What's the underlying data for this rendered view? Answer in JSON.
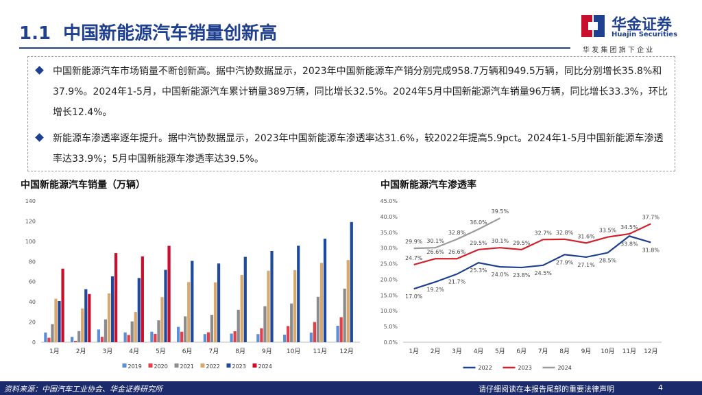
{
  "header": {
    "number": "1.1",
    "title": "中国新能源汽车销量创新高",
    "logo": "华金证券",
    "logo_en": "Huajin Securities",
    "slogan": "华 发 集 团 旗 下 企 业"
  },
  "bullets": [
    "中国新能源汽车市场销量不断创新高。据中汽协数据显示，2023年中国新能源车产销分别完成958.7万辆和949.5万辆，同比分别增长35.8%和37.9%。2024年1-5月，中国新能源汽车累计销量389万辆，同比增长32.5%。2024年5月中国新能源汽车销量96万辆，同比增长33.3%，环比增长12.4%。",
    "新能源车渗透率逐年提升。据中汽协数据显示，2023年中国新能源车渗透率达31.6%，较2022年提高5.9pct。2024年1-5月中国新能源车渗透率达33.9%；5月中国新能源车渗透率达39.5%。"
  ],
  "chart_data": [
    {
      "type": "bar",
      "title": "中国新能源汽车销量（万辆）",
      "categories": [
        "1月",
        "2月",
        "3月",
        "4月",
        "5月",
        "6月",
        "7月",
        "8月",
        "9月",
        "10月",
        "11月",
        "12月"
      ],
      "series": [
        {
          "name": "2019",
          "color": "#5b8fd6",
          "values": [
            9.6,
            5.3,
            12.6,
            9.7,
            10.4,
            15.2,
            8.0,
            8.5,
            8.0,
            7.5,
            9.5,
            16.3
          ]
        },
        {
          "name": "2020",
          "color": "#e0404a",
          "values": [
            4.4,
            1.3,
            5.3,
            7.2,
            8.2,
            10.4,
            9.8,
            10.9,
            13.8,
            16.0,
            20.0,
            24.8
          ]
        },
        {
          "name": "2021",
          "color": "#8c8c8c",
          "values": [
            17.9,
            11.0,
            22.6,
            20.6,
            21.7,
            25.6,
            27.1,
            32.1,
            35.7,
            38.3,
            45.0,
            53.1
          ]
        },
        {
          "name": "2022",
          "color": "#d9a86c",
          "values": [
            43.1,
            33.4,
            48.4,
            29.9,
            44.7,
            59.6,
            59.3,
            66.6,
            70.8,
            71.4,
            78.6,
            81.4
          ]
        },
        {
          "name": "2023",
          "color": "#1f4a9c",
          "values": [
            40.8,
            52.5,
            65.3,
            63.6,
            71.7,
            80.6,
            78.0,
            84.6,
            90.4,
            95.6,
            102.6,
            119.1
          ]
        },
        {
          "name": "2024",
          "color": "#c8102e",
          "values": [
            72.9,
            47.7,
            88.3,
            85.0,
            95.5,
            null,
            null,
            null,
            null,
            null,
            null,
            null
          ]
        }
      ],
      "ylim": [
        0,
        140
      ],
      "yticks": [
        0,
        20,
        40,
        60,
        80,
        100,
        120,
        140
      ],
      "grid": false,
      "legend": "bottom"
    },
    {
      "type": "line",
      "title": "中国新能源汽车渗透率",
      "categories": [
        "1月",
        "2月",
        "3月",
        "4月",
        "5月",
        "6月",
        "7月",
        "8月",
        "9月",
        "10月",
        "11月",
        "12月"
      ],
      "series": [
        {
          "name": "2022",
          "color": "#1f3f8f",
          "values": [
            17.0,
            19.2,
            21.7,
            25.3,
            24.0,
            23.8,
            24.5,
            27.9,
            27.1,
            28.5,
            33.8,
            31.8
          ],
          "value_labels": [
            "17.0%",
            "19.2%",
            "21.7%",
            "25.3%",
            "24.0%",
            "23.8%",
            "24.5%",
            "27.9%",
            "27.1%",
            "28.5%",
            "33.8%",
            "31.8%"
          ]
        },
        {
          "name": "2023",
          "color": "#d0202a",
          "values": [
            24.7,
            26.6,
            26.6,
            29.5,
            30.1,
            29.5,
            32.7,
            32.8,
            31.6,
            33.5,
            34.5,
            37.7
          ],
          "value_labels": [
            "24.7%",
            "26.6%",
            "26.6%",
            "29.5%",
            "30.1%",
            "29.5%",
            "32.7%",
            "32.8%",
            "31.6%",
            "33.5%",
            "34.5%",
            "37.7%"
          ]
        },
        {
          "name": "2024",
          "color": "#9a9a9a",
          "values": [
            29.9,
            30.1,
            32.8,
            36.0,
            39.5,
            null,
            null,
            null,
            null,
            null,
            null,
            null
          ],
          "value_labels": [
            "29.9%",
            "30.1%",
            "32.8%",
            "36.0%",
            "39.5%",
            null,
            null,
            null,
            null,
            null,
            null,
            null
          ]
        }
      ],
      "ylim": [
        0,
        45
      ],
      "yticks": [
        {
          "value": 0,
          "label": "0.0%"
        },
        {
          "value": 5,
          "label": "5.0%"
        },
        {
          "value": 10,
          "label": "10.0%"
        },
        {
          "value": 15,
          "label": "15.0%"
        },
        {
          "value": 20,
          "label": "20.0%"
        },
        {
          "value": 25,
          "label": "25.0%"
        },
        {
          "value": 30,
          "label": "30.0%"
        },
        {
          "value": 35,
          "label": "35.0%"
        },
        {
          "value": 40,
          "label": "40.0%"
        },
        {
          "value": 45,
          "label": "45.0%"
        }
      ],
      "grid": false,
      "legend": "bottom"
    }
  ],
  "footer": {
    "source": "资料来源：中国汽车工业协会、华金证券研究所",
    "notice": "请仔细阅读在本报告尾部的重要法律声明",
    "page": "4"
  }
}
